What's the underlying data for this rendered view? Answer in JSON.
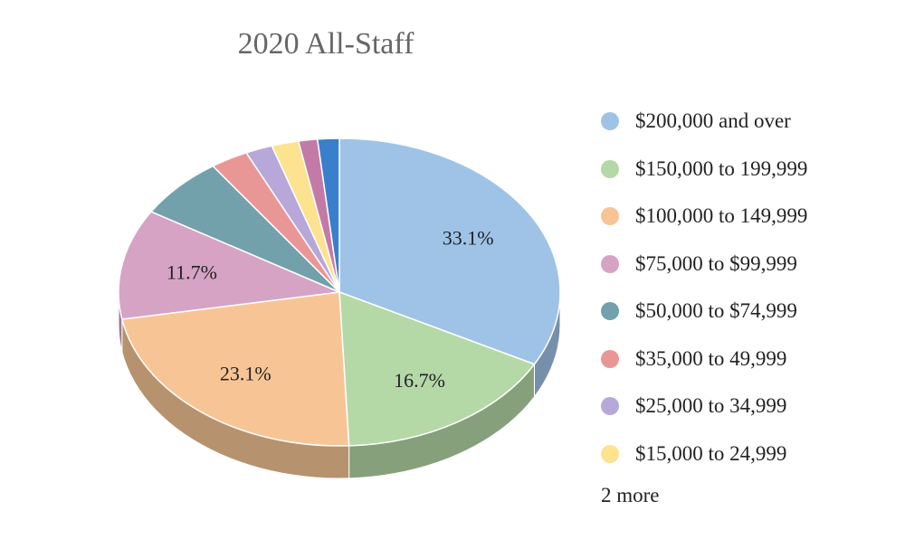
{
  "chart_data": {
    "type": "pie",
    "title": "2020 All-Staff",
    "categories": [
      "$200,000 and over",
      "$150,000 to 199,999",
      "$100,000 to 149,999",
      "$75,000 to $99,999",
      "$50,000 to $74,999",
      "$35,000 to 49,999",
      "$25,000 to 34,999",
      "$15,000 to 24,999",
      "",
      ""
    ],
    "values": [
      33.1,
      16.7,
      23.1,
      11.7,
      6.6,
      2.8,
      2.0,
      2.0,
      1.4,
      1.6
    ],
    "data_labels": [
      "33.1%",
      "16.7%",
      "23.1%",
      "11.7%",
      "",
      "",
      "",
      "",
      "",
      ""
    ],
    "colors": [
      "#9fc3e7",
      "#b5d8a7",
      "#f7c595",
      "#d6a3c4",
      "#72a1ab",
      "#e99796",
      "#b8a8d9",
      "#fde28f",
      "#c47aa7",
      "#3a7fcb"
    ],
    "side_colors": [
      "#7690ab",
      "#86a07c",
      "#b7926e",
      "#9f7991",
      "#55777f",
      "#ad706f",
      "#897da1",
      "#bca86a",
      "#925b7c",
      "#2b5e96"
    ],
    "legend_visible_count": 8,
    "legend_more": "2 more",
    "legend_position": "right",
    "style": "3d"
  }
}
